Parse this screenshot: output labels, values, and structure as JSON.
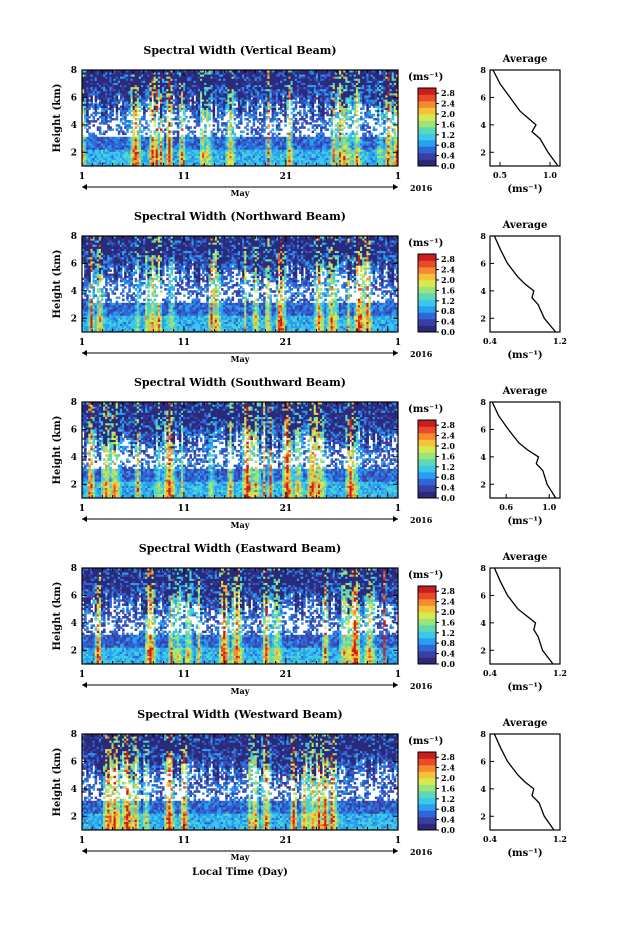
{
  "chart_data": [
    {
      "type": "heatmap",
      "title": "Spectral Width (Vertical Beam)",
      "ylabel": "Height (km)",
      "xlabel": "",
      "x_ticks": [
        "1",
        "11",
        "21",
        "1"
      ],
      "month_label": "May",
      "year_label": "2016",
      "y_ticks": [
        "2",
        "4",
        "6",
        "8"
      ],
      "ylim": [
        1,
        8
      ],
      "xlim_days": [
        1,
        32
      ],
      "colorbar_unit": "(ms⁻¹)",
      "colorbar_ticks": [
        "0.0",
        "0.4",
        "0.8",
        "1.2",
        "1.6",
        "2.0",
        "2.4",
        "2.8"
      ],
      "clim": [
        0.0,
        3.0
      ],
      "average_profile": {
        "title": "Average",
        "xlabel": "(ms⁻¹)",
        "x_ticks": [
          "0.5",
          "1.0"
        ],
        "xlim": [
          0.4,
          1.1
        ],
        "height_km": [
          1.0,
          2.0,
          3.0,
          3.5,
          4.0,
          4.5,
          5.0,
          6.0,
          7.0,
          8.0
        ],
        "width": [
          1.08,
          0.98,
          0.9,
          0.82,
          0.86,
          0.78,
          0.7,
          0.6,
          0.5,
          0.43
        ]
      }
    },
    {
      "type": "heatmap",
      "title": "Spectral Width (Northward Beam)",
      "ylabel": "Height (km)",
      "xlabel": "",
      "x_ticks": [
        "1",
        "11",
        "21",
        "1"
      ],
      "month_label": "May",
      "year_label": "2016",
      "y_ticks": [
        "2",
        "4",
        "6",
        "8"
      ],
      "ylim": [
        1,
        8
      ],
      "xlim_days": [
        1,
        32
      ],
      "colorbar_unit": "(ms⁻¹)",
      "colorbar_ticks": [
        "0.0",
        "0.4",
        "0.8",
        "1.2",
        "1.6",
        "2.0",
        "2.4",
        "2.8"
      ],
      "clim": [
        0.0,
        3.0
      ],
      "average_profile": {
        "title": "Average",
        "xlabel": "(ms⁻¹)",
        "x_ticks": [
          "0.4",
          "1.2"
        ],
        "xlim": [
          0.4,
          1.2
        ],
        "height_km": [
          1.0,
          2.0,
          3.0,
          3.5,
          4.0,
          4.5,
          5.0,
          6.0,
          7.0,
          8.0
        ],
        "width": [
          1.15,
          1.02,
          0.95,
          0.88,
          0.9,
          0.8,
          0.72,
          0.6,
          0.52,
          0.45
        ]
      }
    },
    {
      "type": "heatmap",
      "title": "Spectral Width (Southward Beam)",
      "ylabel": "Height (km)",
      "xlabel": "",
      "x_ticks": [
        "1",
        "11",
        "21",
        "1"
      ],
      "month_label": "May",
      "year_label": "2016",
      "y_ticks": [
        "2",
        "4",
        "6",
        "8"
      ],
      "ylim": [
        1,
        8
      ],
      "xlim_days": [
        1,
        32
      ],
      "colorbar_unit": "(ms⁻¹)",
      "colorbar_ticks": [
        "0.0",
        "0.4",
        "0.8",
        "1.2",
        "1.6",
        "2.0",
        "2.4",
        "2.8"
      ],
      "clim": [
        0.0,
        3.0
      ],
      "average_profile": {
        "title": "Average",
        "xlabel": "(ms⁻¹)",
        "x_ticks": [
          "0.6",
          "1.0"
        ],
        "xlim": [
          0.45,
          1.1
        ],
        "height_km": [
          1.0,
          2.0,
          3.0,
          3.5,
          4.0,
          4.5,
          5.0,
          6.0,
          7.0,
          8.0
        ],
        "width": [
          1.06,
          0.98,
          0.94,
          0.88,
          0.9,
          0.8,
          0.72,
          0.62,
          0.53,
          0.47
        ]
      }
    },
    {
      "type": "heatmap",
      "title": "Spectral Width (Eastward Beam)",
      "ylabel": "Height (km)",
      "xlabel": "",
      "x_ticks": [
        "1",
        "11",
        "21",
        "1"
      ],
      "month_label": "May",
      "year_label": "2016",
      "y_ticks": [
        "2",
        "4",
        "6",
        "8"
      ],
      "ylim": [
        1,
        8
      ],
      "xlim_days": [
        1,
        32
      ],
      "colorbar_unit": "(ms⁻¹)",
      "colorbar_ticks": [
        "0.0",
        "0.4",
        "0.8",
        "1.2",
        "1.6",
        "2.0",
        "2.4",
        "2.8"
      ],
      "clim": [
        0.0,
        3.0
      ],
      "average_profile": {
        "title": "Average",
        "xlabel": "(ms⁻¹)",
        "x_ticks": [
          "0.4",
          "1.2"
        ],
        "xlim": [
          0.4,
          1.2
        ],
        "height_km": [
          1.0,
          2.0,
          3.0,
          3.5,
          4.0,
          4.5,
          5.0,
          6.0,
          7.0,
          8.0
        ],
        "width": [
          1.12,
          1.0,
          0.95,
          0.9,
          0.92,
          0.82,
          0.72,
          0.6,
          0.52,
          0.45
        ]
      }
    },
    {
      "type": "heatmap",
      "title": "Spectral Width (Westward Beam)",
      "ylabel": "Height (km)",
      "xlabel": "Local Time (Day)",
      "x_ticks": [
        "1",
        "11",
        "21",
        "1"
      ],
      "month_label": "May",
      "year_label": "2016",
      "y_ticks": [
        "2",
        "4",
        "6",
        "8"
      ],
      "ylim": [
        1,
        8
      ],
      "xlim_days": [
        1,
        32
      ],
      "colorbar_unit": "(ms⁻¹)",
      "colorbar_ticks": [
        "0.0",
        "0.4",
        "0.8",
        "1.2",
        "1.6",
        "2.0",
        "2.4",
        "2.8"
      ],
      "clim": [
        0.0,
        3.0
      ],
      "average_profile": {
        "title": "Average",
        "xlabel": "(ms⁻¹)",
        "x_ticks": [
          "0.4",
          "1.2"
        ],
        "xlim": [
          0.4,
          1.2
        ],
        "height_km": [
          1.0,
          2.0,
          3.0,
          3.5,
          4.0,
          4.5,
          5.0,
          6.0,
          7.0,
          8.0
        ],
        "width": [
          1.13,
          1.02,
          0.96,
          0.88,
          0.9,
          0.8,
          0.72,
          0.6,
          0.52,
          0.45
        ]
      }
    }
  ],
  "colors": {
    "background": "#ffffff",
    "axis": "#000000",
    "colormap": [
      "#2b2a7a",
      "#3a3fa3",
      "#2f66d8",
      "#2a9ef0",
      "#3cc8ea",
      "#5fd9b3",
      "#9ce37a",
      "#d6ea4f",
      "#f7c13a",
      "#f58a2e",
      "#e84a2a",
      "#c81e1e"
    ]
  }
}
